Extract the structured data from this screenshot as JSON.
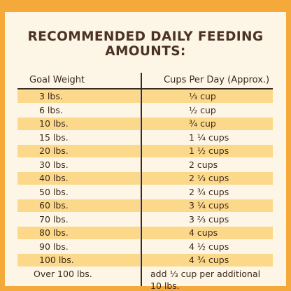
{
  "title": "RECOMMENDED DAILY FEEDING AMOUNTS:",
  "table": {
    "headers": {
      "left": "Goal Weight",
      "right": "Cups Per Day (Approx.)"
    },
    "rows": [
      {
        "weight": "3 lbs.",
        "cups": "⅓ cup"
      },
      {
        "weight": "6 lbs.",
        "cups": "½ cup"
      },
      {
        "weight": "10 lbs.",
        "cups": "¾ cup"
      },
      {
        "weight": "15 lbs.",
        "cups": "1 ¼ cups"
      },
      {
        "weight": "20 lbs.",
        "cups": "1 ½ cups"
      },
      {
        "weight": "30 lbs.",
        "cups": "2 cups"
      },
      {
        "weight": "40 lbs.",
        "cups": "2 ⅓ cups"
      },
      {
        "weight": "50 lbs.",
        "cups": "2 ¾ cups"
      },
      {
        "weight": "60 lbs.",
        "cups": "3 ¼ cups"
      },
      {
        "weight": "70 lbs.",
        "cups": "3 ⅔ cups"
      },
      {
        "weight": "80 lbs.",
        "cups": "4 cups"
      },
      {
        "weight": "90 lbs.",
        "cups": "4 ½ cups"
      },
      {
        "weight": "100 lbs.",
        "cups": "4 ¾ cups"
      },
      {
        "weight": "Over 100 lbs.",
        "cups": "add ⅓ cup per additional 10 lbs."
      }
    ]
  },
  "colors": {
    "background": "#f6a93b",
    "card": "#fdf6e6",
    "stripe": "#fcd98a",
    "text": "#3b2a1e"
  }
}
